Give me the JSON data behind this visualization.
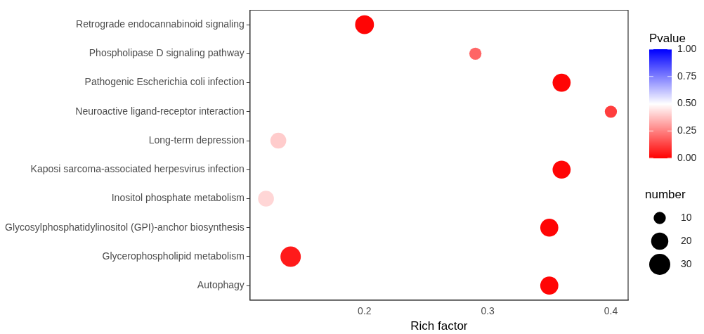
{
  "chart_data": {
    "type": "bubble",
    "orientation": "horizontal",
    "xlabel": "Rich factor",
    "clabel": "Pvalue",
    "legend_title": "number",
    "grid": false,
    "categories": [
      "Retrograde endocannabinoid signaling",
      "Phospholipase D signaling pathway",
      "Pathogenic Escherichia coli infection",
      "Neuroactive ligand-receptor interaction",
      "Long-term depression",
      "Kaposi sarcoma-associated herpesvirus infection",
      "Inositol phosphate metabolism",
      "Glycosylphosphatidylinositol (GPI)-anchor biosynthesis",
      "Glycerophospholipid metabolism",
      "Autophagy"
    ],
    "values": [
      0.2,
      0.29,
      0.36,
      0.4,
      0.13,
      0.36,
      0.12,
      0.35,
      0.14,
      0.35
    ],
    "sizes": [
      24,
      10,
      22,
      10,
      17,
      22,
      17,
      22,
      28,
      22
    ],
    "cvalues": [
      0.01,
      0.2,
      0.01,
      0.12,
      0.4,
      0.01,
      0.42,
      0.01,
      0.05,
      0.01
    ],
    "size_legend": [
      10,
      20,
      30
    ],
    "clim": [
      0,
      1
    ],
    "cticks": [
      {
        "value": 0,
        "label": "0.00"
      },
      {
        "value": 0.25,
        "label": "0.25"
      },
      {
        "value": 0.5,
        "label": "0.50"
      },
      {
        "value": 0.75,
        "label": "0.75"
      },
      {
        "value": 1,
        "label": "1.00"
      }
    ],
    "xlim": [
      0.107,
      0.414
    ],
    "xticks": [
      0.2,
      0.3,
      0.4
    ]
  }
}
